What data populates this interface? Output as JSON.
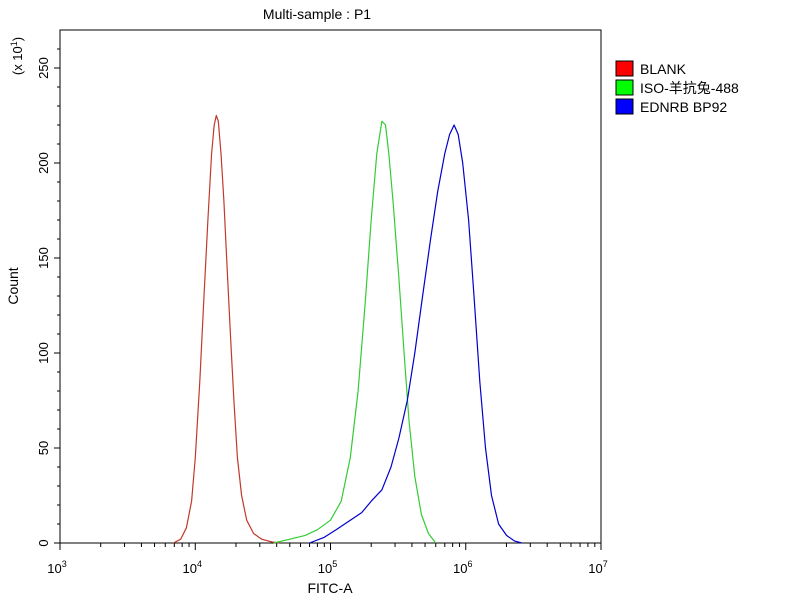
{
  "chart_data": {
    "type": "line",
    "title": "Multi-sample : P1",
    "xlabel": "FITC-A",
    "ylabel": "Count",
    "y_multiplier_label": "(x 10",
    "y_multiplier_exp": "1",
    "y_multiplier_close": ")",
    "x_scale": "log",
    "xlim": [
      1000,
      10000000
    ],
    "ylim": [
      0,
      270
    ],
    "x_ticks": [
      {
        "value": 1000,
        "base": "10",
        "exp": "3"
      },
      {
        "value": 10000,
        "base": "10",
        "exp": "4"
      },
      {
        "value": 100000,
        "base": "10",
        "exp": "5"
      },
      {
        "value": 1000000,
        "base": "10",
        "exp": "6"
      },
      {
        "value": 10000000,
        "base": "10",
        "exp": "7"
      }
    ],
    "y_ticks": [
      0,
      50,
      100,
      150,
      200,
      250
    ],
    "legend_position": "outside-right",
    "grid": false,
    "series": [
      {
        "name": "BLANK",
        "color": "#c0392b",
        "legend_color": "#ff0000",
        "points": [
          [
            6900,
            0
          ],
          [
            7800,
            2
          ],
          [
            8600,
            8
          ],
          [
            9400,
            22
          ],
          [
            10000,
            45
          ],
          [
            10800,
            85
          ],
          [
            11600,
            130
          ],
          [
            12400,
            170
          ],
          [
            13200,
            205
          ],
          [
            13800,
            220
          ],
          [
            14300,
            225
          ],
          [
            14800,
            222
          ],
          [
            15500,
            205
          ],
          [
            16300,
            180
          ],
          [
            17200,
            145
          ],
          [
            18200,
            110
          ],
          [
            19300,
            75
          ],
          [
            20500,
            45
          ],
          [
            22000,
            25
          ],
          [
            24000,
            12
          ],
          [
            27000,
            5
          ],
          [
            31000,
            2
          ],
          [
            37000,
            0.5
          ],
          [
            42000,
            0
          ]
        ]
      },
      {
        "name": "ISO-羊抗兔-488",
        "color": "#33cc33",
        "legend_color": "#00ff00",
        "points": [
          [
            38000,
            0
          ],
          [
            50000,
            2
          ],
          [
            65000,
            4
          ],
          [
            80000,
            7
          ],
          [
            100000,
            12
          ],
          [
            120000,
            22
          ],
          [
            140000,
            45
          ],
          [
            160000,
            80
          ],
          [
            180000,
            125
          ],
          [
            200000,
            170
          ],
          [
            220000,
            205
          ],
          [
            240000,
            222
          ],
          [
            255000,
            220
          ],
          [
            270000,
            205
          ],
          [
            290000,
            180
          ],
          [
            320000,
            140
          ],
          [
            350000,
            100
          ],
          [
            380000,
            65
          ],
          [
            420000,
            35
          ],
          [
            470000,
            15
          ],
          [
            530000,
            5
          ],
          [
            600000,
            0
          ]
        ]
      },
      {
        "name": "EDNRB BP92",
        "color": "#0000cc",
        "legend_color": "#0000ff",
        "points": [
          [
            70000,
            0
          ],
          [
            90000,
            3
          ],
          [
            110000,
            7
          ],
          [
            140000,
            12
          ],
          [
            170000,
            16
          ],
          [
            200000,
            22
          ],
          [
            240000,
            28
          ],
          [
            280000,
            40
          ],
          [
            320000,
            55
          ],
          [
            370000,
            75
          ],
          [
            420000,
            100
          ],
          [
            480000,
            130
          ],
          [
            550000,
            160
          ],
          [
            620000,
            185
          ],
          [
            700000,
            205
          ],
          [
            760000,
            215
          ],
          [
            820000,
            220
          ],
          [
            880000,
            215
          ],
          [
            950000,
            200
          ],
          [
            1050000,
            170
          ],
          [
            1150000,
            130
          ],
          [
            1270000,
            85
          ],
          [
            1400000,
            50
          ],
          [
            1550000,
            25
          ],
          [
            1750000,
            10
          ],
          [
            2000000,
            4
          ],
          [
            2300000,
            1
          ],
          [
            2600000,
            0
          ]
        ]
      }
    ]
  }
}
